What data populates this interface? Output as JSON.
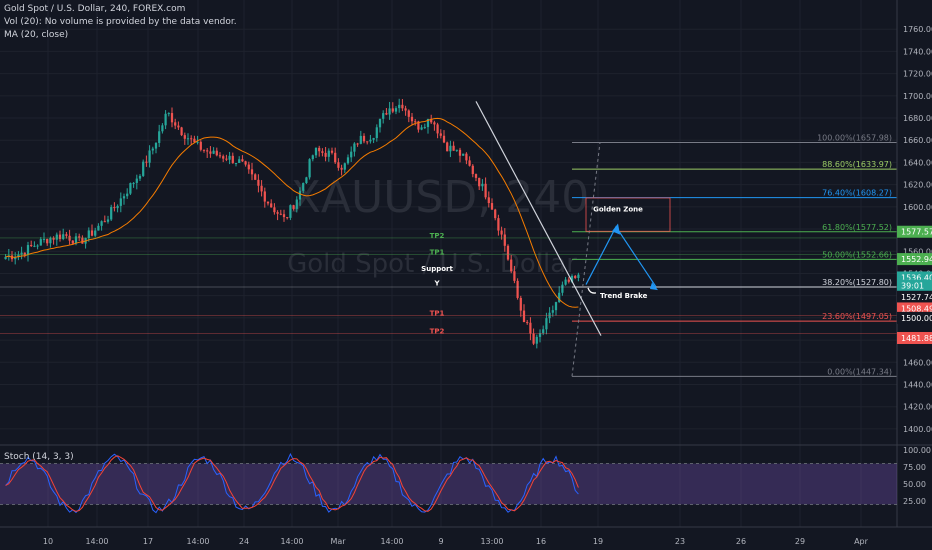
{
  "header": {
    "title": "Gold Spot / U.S. Dollar, 240, FOREX.com",
    "volume_note": "Vol (20): No volume is provided by the data vendor.",
    "ma_label": "MA (20, close)"
  },
  "watermark": {
    "symbol": "XAUUSD, 240",
    "name": "Gold Spot / U.S. Dollar"
  },
  "stoch_label": "Stoch (14, 3, 3)",
  "colors": {
    "up": "#26a69a",
    "down": "#ef5350",
    "ma": "#f57c00",
    "stoch_k": "#2962ff",
    "stoch_d": "#f44336",
    "stoch_band": "#7e57c2"
  },
  "chart_data": [
    {
      "type": "candlestick",
      "ylim": [
        1390,
        1780
      ],
      "y_ticks": [
        1400,
        1420,
        1440,
        1460,
        1480,
        1500,
        1520,
        1540,
        1560,
        1580,
        1600,
        1620,
        1640,
        1660,
        1680,
        1700,
        1720,
        1740,
        1760
      ],
      "y_tick_labels": [
        "1400.00",
        "1420.00",
        "1440.00",
        "1460.00",
        "1480.00",
        "1500.00",
        "1520.00",
        "1540.00",
        "1560.00",
        "1580.00",
        "1600.00",
        "1620.00",
        "1640.00",
        "1660.00",
        "1680.00",
        "1700.00",
        "1720.00",
        "1740.00",
        "1760.00"
      ],
      "x_tick_labels": [
        "10",
        "14:00",
        "17",
        "14:00",
        "24",
        "14:00",
        "Mar",
        "14:00",
        "9",
        "13:00",
        "16",
        "19",
        "23",
        "26",
        "29",
        "Apr"
      ],
      "close_path": [
        1555,
        1558,
        1566,
        1572,
        1575,
        1568,
        1578,
        1592,
        1610,
        1628,
        1652,
        1685,
        1668,
        1655,
        1648,
        1645,
        1640,
        1622,
        1602,
        1588,
        1612,
        1650,
        1648,
        1635,
        1660,
        1665,
        1688,
        1693,
        1672,
        1680,
        1655,
        1647,
        1628,
        1605,
        1565,
        1510,
        1475,
        1500,
        1530,
        1536
      ],
      "fibonacci": [
        {
          "level": "100.00%",
          "price": 1657.98,
          "label": "100.00%(1657.98)"
        },
        {
          "level": "88.60%",
          "price": 1633.97,
          "label": "88.60%(1633.97)"
        },
        {
          "level": "76.40%",
          "price": 1608.27,
          "label": "76.40%(1608.27)"
        },
        {
          "level": "61.80%",
          "price": 1577.52,
          "label": "61.80%(1577.52)"
        },
        {
          "level": "50.00%",
          "price": 1552.66,
          "label": "50.00%(1552.66)"
        },
        {
          "level": "38.20%",
          "price": 1527.8,
          "label": "38.20%(1527.80)"
        },
        {
          "level": "23.60%",
          "price": 1497.05,
          "label": "23.60%(1497.05)"
        },
        {
          "level": "0.00%",
          "price": 1447.34,
          "label": "0.00%(1447.34)"
        }
      ],
      "price_tags": [
        {
          "text": "1577.57",
          "price": 1577.57,
          "color": "#4caf50"
        },
        {
          "text": "1552.94",
          "price": 1552.94,
          "color": "#4caf50"
        },
        {
          "text": "1536.40",
          "price": 1536.4,
          "color": "#26a69a"
        },
        {
          "text": "39:01",
          "price": 1529.0,
          "color": "#26a69a"
        },
        {
          "text": "1527.74",
          "price": 1519.0,
          "color": "#131722"
        },
        {
          "text": "1508.49",
          "price": 1508.49,
          "color": "#ef5350"
        },
        {
          "text": "1500.00",
          "price": 1500.0,
          "color": "#131722"
        },
        {
          "text": "1481.88",
          "price": 1481.88,
          "color": "#ef5350"
        }
      ],
      "annotations": [
        {
          "text": "TP2",
          "price": 1572,
          "color": "#4caf50"
        },
        {
          "text": "TP1",
          "price": 1557,
          "color": "#4caf50"
        },
        {
          "text": "Support",
          "price": 1542,
          "color": "#ffffff"
        },
        {
          "text": "TP1",
          "price": 1502,
          "color": "#ef5350"
        },
        {
          "text": "TP2",
          "price": 1486,
          "color": "#ef5350"
        },
        {
          "text": "Golden Zone",
          "price": 1596,
          "color": "#ffffff"
        },
        {
          "text": "Trend Brake",
          "price": 1518,
          "color": "#ffffff"
        }
      ]
    },
    {
      "type": "line",
      "name": "Stoch (14, 3, 3)",
      "ylim": [
        0,
        100
      ],
      "y_tick_labels": [
        "25.00",
        "50.00",
        "75.00",
        "100.00"
      ],
      "band": [
        20,
        80
      ]
    }
  ]
}
